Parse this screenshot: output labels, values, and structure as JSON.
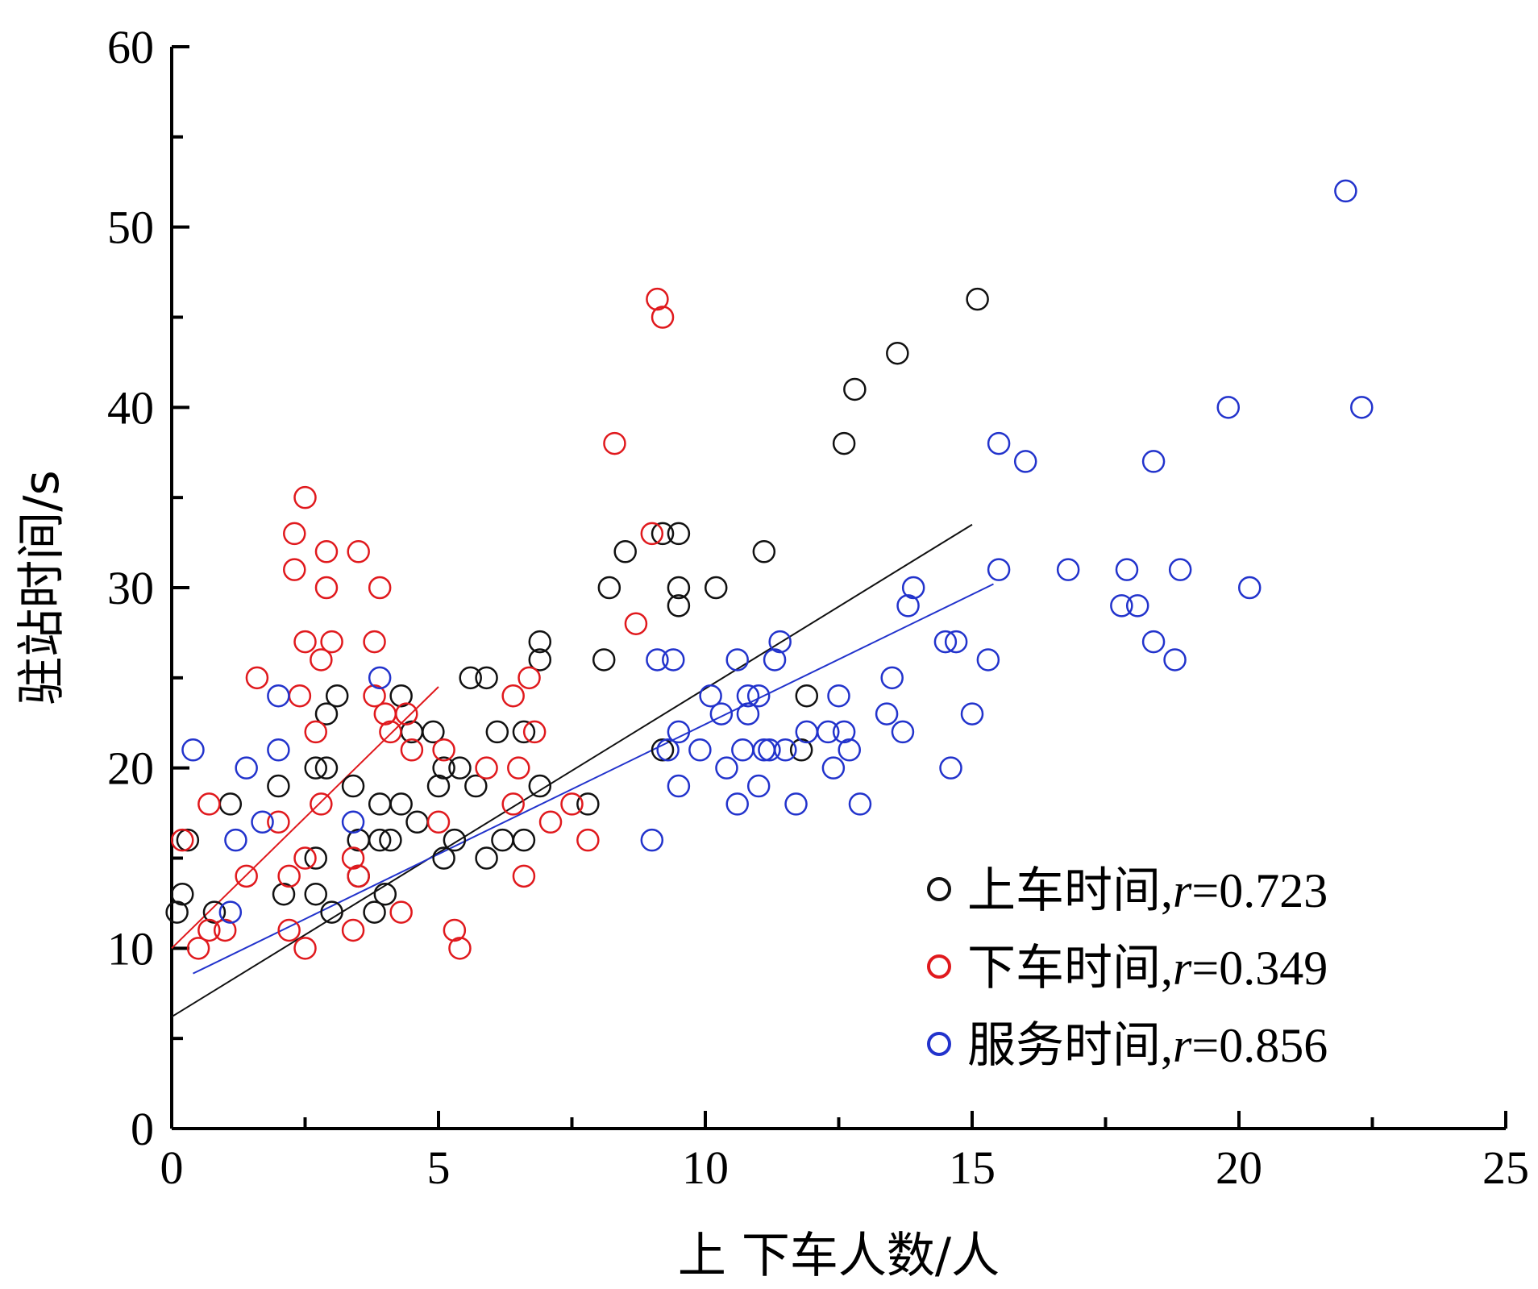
{
  "chart_data": {
    "type": "scatter",
    "xlabel": "上 下车人数/人",
    "ylabel": "驻站时间/s",
    "xlim": [
      0,
      25
    ],
    "ylim": [
      0,
      60
    ],
    "xticks": [
      0,
      5,
      10,
      15,
      20,
      25
    ],
    "yticks": [
      0,
      10,
      20,
      30,
      40,
      50,
      60
    ],
    "grid": false,
    "legend_position": "bottom-right",
    "series": [
      {
        "name": "上车时间",
        "r_label": "r",
        "r_value": "=0.723",
        "color": "#111111",
        "trend": {
          "x": [
            0,
            15
          ],
          "y": [
            6.2,
            33.5
          ]
        },
        "points": [
          [
            0.1,
            12
          ],
          [
            0.2,
            13
          ],
          [
            0.3,
            16
          ],
          [
            0.8,
            12
          ],
          [
            1.1,
            18
          ],
          [
            2,
            19
          ],
          [
            2.1,
            13
          ],
          [
            2.7,
            13
          ],
          [
            2.7,
            15
          ],
          [
            2.7,
            20
          ],
          [
            2.9,
            20
          ],
          [
            2.9,
            23
          ],
          [
            3.0,
            12
          ],
          [
            3.1,
            24
          ],
          [
            3.4,
            19
          ],
          [
            3.5,
            16
          ],
          [
            3.5,
            14
          ],
          [
            3.8,
            12
          ],
          [
            3.9,
            18
          ],
          [
            3.9,
            16
          ],
          [
            4.0,
            13
          ],
          [
            4.1,
            16
          ],
          [
            4.3,
            24
          ],
          [
            4.3,
            18
          ],
          [
            4.5,
            22
          ],
          [
            4.6,
            17
          ],
          [
            4.9,
            22
          ],
          [
            5.0,
            19
          ],
          [
            5.1,
            15
          ],
          [
            5.1,
            20
          ],
          [
            5.3,
            16
          ],
          [
            5.4,
            20
          ],
          [
            5.6,
            25
          ],
          [
            5.7,
            19
          ],
          [
            5.9,
            25
          ],
          [
            5.9,
            15
          ],
          [
            6.1,
            22
          ],
          [
            6.2,
            16
          ],
          [
            6.6,
            16
          ],
          [
            6.6,
            22
          ],
          [
            6.9,
            27
          ],
          [
            6.9,
            26
          ],
          [
            6.9,
            19
          ],
          [
            7.8,
            18
          ],
          [
            8.1,
            26
          ],
          [
            8.2,
            30
          ],
          [
            8.5,
            32
          ],
          [
            9.2,
            33
          ],
          [
            9.2,
            21
          ],
          [
            9.5,
            33
          ],
          [
            9.5,
            30
          ],
          [
            9.5,
            29
          ],
          [
            10.2,
            30
          ],
          [
            11.1,
            32
          ],
          [
            11.8,
            21
          ],
          [
            11.9,
            24
          ],
          [
            12.6,
            38
          ],
          [
            12.8,
            41
          ],
          [
            13.6,
            43
          ],
          [
            15.1,
            46
          ]
        ]
      },
      {
        "name": "下车时间",
        "r_label": "r",
        "r_value": "=0.349",
        "color": "#e0191d",
        "trend": {
          "x": [
            0,
            5
          ],
          "y": [
            10,
            24.5
          ]
        },
        "points": [
          [
            0.2,
            16
          ],
          [
            0.5,
            10
          ],
          [
            0.7,
            11
          ],
          [
            0.7,
            18
          ],
          [
            1.0,
            11
          ],
          [
            1.4,
            14
          ],
          [
            1.6,
            25
          ],
          [
            2.0,
            17
          ],
          [
            2.2,
            14
          ],
          [
            2.2,
            11
          ],
          [
            2.3,
            31
          ],
          [
            2.3,
            33
          ],
          [
            2.4,
            24
          ],
          [
            2.5,
            15
          ],
          [
            2.5,
            10
          ],
          [
            2.5,
            35
          ],
          [
            2.5,
            27
          ],
          [
            2.7,
            22
          ],
          [
            2.8,
            18
          ],
          [
            2.8,
            26
          ],
          [
            2.9,
            30
          ],
          [
            2.9,
            32
          ],
          [
            3.0,
            27
          ],
          [
            3.4,
            15
          ],
          [
            3.4,
            11
          ],
          [
            3.5,
            32
          ],
          [
            3.5,
            14
          ],
          [
            3.8,
            27
          ],
          [
            3.8,
            24
          ],
          [
            3.9,
            30
          ],
          [
            4.0,
            23
          ],
          [
            4.1,
            22
          ],
          [
            4.3,
            12
          ],
          [
            4.4,
            23
          ],
          [
            4.5,
            21
          ],
          [
            5.0,
            17
          ],
          [
            5.1,
            21
          ],
          [
            5.3,
            11
          ],
          [
            5.4,
            10
          ],
          [
            5.9,
            20
          ],
          [
            6.4,
            18
          ],
          [
            6.4,
            24
          ],
          [
            6.5,
            20
          ],
          [
            6.6,
            14
          ],
          [
            6.7,
            25
          ],
          [
            6.8,
            22
          ],
          [
            7.1,
            17
          ],
          [
            7.5,
            18
          ],
          [
            7.8,
            16
          ],
          [
            8.3,
            38
          ],
          [
            8.7,
            28
          ],
          [
            9.0,
            33
          ],
          [
            9.1,
            46
          ],
          [
            9.2,
            45
          ]
        ]
      },
      {
        "name": "服务时间",
        "r_label": "r",
        "r_value": "=0.856",
        "color": "#2233cc",
        "trend": {
          "x": [
            0.4,
            15.4
          ],
          "y": [
            8.6,
            30.2
          ]
        },
        "points": [
          [
            0.4,
            21
          ],
          [
            1.1,
            12
          ],
          [
            1.2,
            16
          ],
          [
            1.4,
            20
          ],
          [
            1.7,
            17
          ],
          [
            2.0,
            24
          ],
          [
            2.0,
            21
          ],
          [
            3.4,
            17
          ],
          [
            3.9,
            25
          ],
          [
            9.0,
            16
          ],
          [
            9.1,
            26
          ],
          [
            9.3,
            21
          ],
          [
            9.4,
            26
          ],
          [
            9.5,
            22
          ],
          [
            9.5,
            19
          ],
          [
            9.9,
            21
          ],
          [
            10.1,
            24
          ],
          [
            10.3,
            23
          ],
          [
            10.4,
            20
          ],
          [
            10.6,
            26
          ],
          [
            10.6,
            18
          ],
          [
            10.7,
            21
          ],
          [
            10.8,
            23
          ],
          [
            10.8,
            24
          ],
          [
            11.0,
            24
          ],
          [
            11.0,
            19
          ],
          [
            11.1,
            21
          ],
          [
            11.2,
            21
          ],
          [
            11.3,
            26
          ],
          [
            11.4,
            27
          ],
          [
            11.5,
            21
          ],
          [
            11.7,
            18
          ],
          [
            11.9,
            22
          ],
          [
            12.3,
            22
          ],
          [
            12.4,
            20
          ],
          [
            12.5,
            24
          ],
          [
            12.6,
            22
          ],
          [
            12.7,
            21
          ],
          [
            12.9,
            18
          ],
          [
            13.4,
            23
          ],
          [
            13.5,
            25
          ],
          [
            13.7,
            22
          ],
          [
            13.8,
            29
          ],
          [
            13.9,
            30
          ],
          [
            14.5,
            27
          ],
          [
            14.6,
            20
          ],
          [
            14.7,
            27
          ],
          [
            15.0,
            23
          ],
          [
            15.3,
            26
          ],
          [
            15.5,
            31
          ],
          [
            15.5,
            38
          ],
          [
            16.0,
            37
          ],
          [
            16.8,
            31
          ],
          [
            17.8,
            29
          ],
          [
            17.9,
            31
          ],
          [
            18.1,
            29
          ],
          [
            18.4,
            27
          ],
          [
            18.4,
            37
          ],
          [
            18.8,
            26
          ],
          [
            18.9,
            31
          ],
          [
            19.8,
            40
          ],
          [
            20.2,
            30
          ],
          [
            22.0,
            52
          ],
          [
            22.3,
            40
          ]
        ]
      }
    ]
  }
}
